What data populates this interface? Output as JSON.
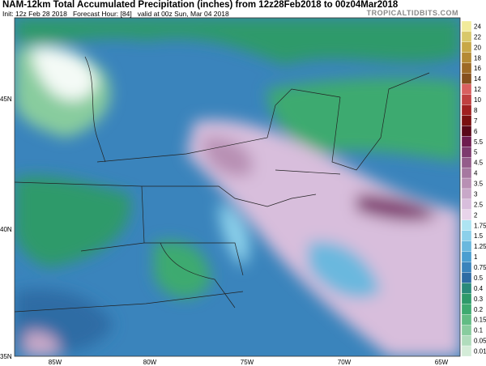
{
  "header": {
    "title": "NAM-12km Total Accumulated Precipitation (inches) from 12z28Feb2018 to 00z04Mar2018",
    "subtitle": "Init: 12z Feb 28 2018   Forecast Hour: [84]   valid at 00z Sun, Mar 04 2018",
    "source": "TROPICALTIDBITS.COM"
  },
  "map": {
    "lat_labels": [
      "45N",
      "40N",
      "35N"
    ],
    "lon_labels": [
      "85W",
      "80W",
      "75W",
      "70W",
      "65W"
    ]
  },
  "colorbar": {
    "labels": [
      "24",
      "22",
      "20",
      "18",
      "16",
      "14",
      "12",
      "10",
      "8",
      "7",
      "6",
      "5.5",
      "5",
      "4.5",
      "4",
      "3.5",
      "3",
      "2.5",
      "2",
      "1.75",
      "1.5",
      "1.25",
      "1",
      "0.75",
      "0.5",
      "0.4",
      "0.3",
      "0.2",
      "0.15",
      "0.1",
      "0.05",
      "0.01"
    ],
    "colors": [
      "#f2eb9b",
      "#d9c86a",
      "#c8a848",
      "#b58a34",
      "#9e6a26",
      "#86501e",
      "#d96060",
      "#c04040",
      "#a02020",
      "#7a1010",
      "#5a0818",
      "#6e1c4e",
      "#7e3a6e",
      "#945c8a",
      "#a678a0",
      "#b890b4",
      "#c8a8c8",
      "#d8bedc",
      "#e8d4ea",
      "#aee4f2",
      "#8cd0ea",
      "#6ab8de",
      "#4a9ed0",
      "#3a84bc",
      "#2e6ca4",
      "#2a8a7a",
      "#2e9a6a",
      "#3eaa70",
      "#62bc84",
      "#88cc9e",
      "#b0dcbc",
      "#d4ecd8"
    ]
  }
}
